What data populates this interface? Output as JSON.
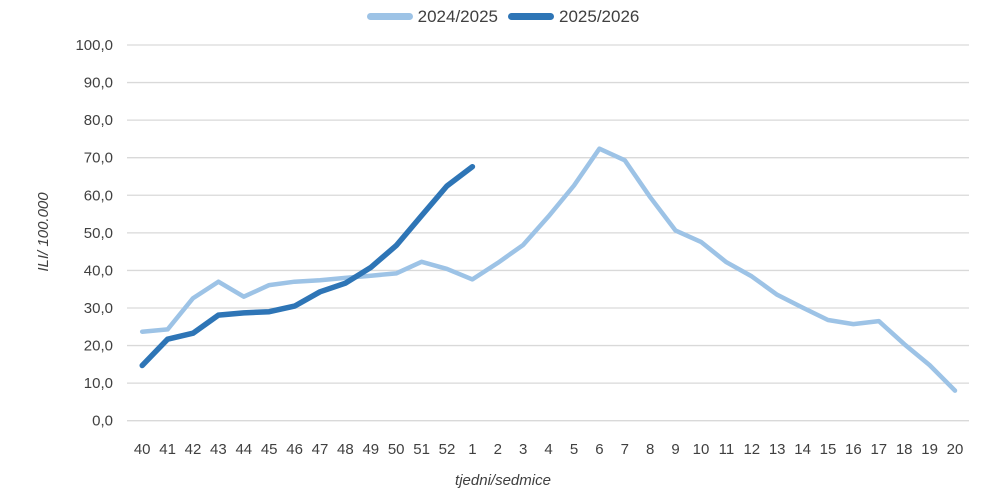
{
  "chart_data": {
    "type": "line",
    "title": "",
    "xlabel": "tjedni/sedmice",
    "ylabel": "ILI/ 100.000",
    "ylim": [
      0,
      100
    ],
    "grid": "horizontal",
    "legend_position": "top-center",
    "grid_color": "#d9d9d9",
    "text_color": "#404040",
    "categories": [
      "40",
      "41",
      "42",
      "43",
      "44",
      "45",
      "46",
      "47",
      "48",
      "49",
      "50",
      "51",
      "52",
      "1",
      "2",
      "3",
      "4",
      "5",
      "6",
      "7",
      "8",
      "9",
      "10",
      "11",
      "12",
      "13",
      "14",
      "15",
      "16",
      "17",
      "18",
      "19",
      "20"
    ],
    "y_ticks": {
      "values": [
        0,
        10,
        20,
        30,
        40,
        50,
        60,
        70,
        80,
        90,
        100
      ],
      "labels": [
        "0,0",
        "10,0",
        "20,0",
        "30,0",
        "40,0",
        "50,0",
        "60,0",
        "70,0",
        "80,0",
        "90,0",
        "100,0"
      ]
    },
    "series": [
      {
        "name": "2024/2025",
        "color": "#9dc3e6",
        "stroke_width": 4.5,
        "values": [
          23.7,
          24.3,
          32.6,
          37.0,
          33.0,
          36.1,
          37.0,
          37.4,
          38.0,
          38.6,
          39.2,
          42.3,
          40.4,
          37.6,
          42.0,
          46.8,
          54.4,
          62.6,
          72.4,
          69.3,
          59.5,
          50.6,
          47.6,
          42.2,
          38.4,
          33.5,
          30.1,
          26.8,
          25.7,
          26.5,
          20.4,
          14.8,
          8.0
        ]
      },
      {
        "name": "2025/2026",
        "color": "#2e75b6",
        "stroke_width": 5.5,
        "values": [
          14.7,
          21.7,
          23.3,
          28.1,
          28.7,
          29.0,
          30.5,
          34.3,
          36.6,
          40.8,
          46.6,
          54.6,
          62.5,
          67.6
        ]
      }
    ]
  },
  "legend": {
    "items": [
      {
        "label": "2024/2025",
        "color": "#9dc3e6"
      },
      {
        "label": "2025/2026",
        "color": "#2e75b6"
      }
    ]
  }
}
